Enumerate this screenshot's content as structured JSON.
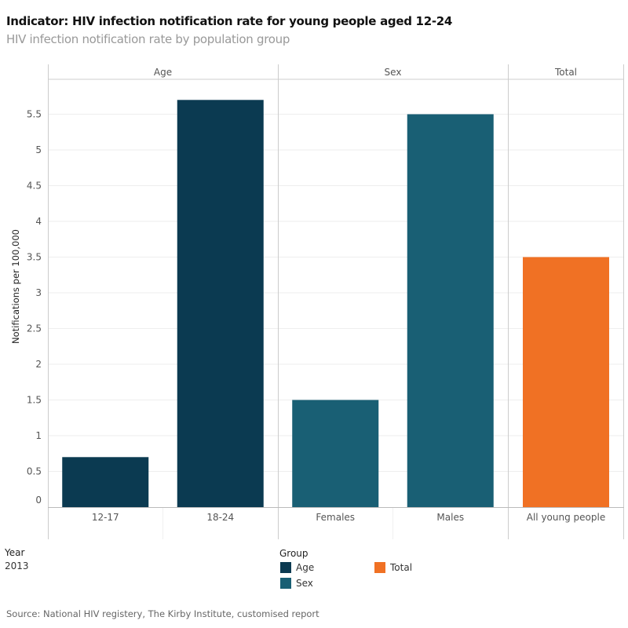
{
  "title": "Indicator: HIV infection notification rate for young people aged 12-24",
  "subtitle": "HIV infection notification rate by population group",
  "chart_data": {
    "type": "bar",
    "ylabel": "Notifications per 100,000",
    "ylim": [
      0,
      5.8
    ],
    "yticks": [
      "0",
      "0.5",
      "1",
      "1.5",
      "2",
      "2.5",
      "3",
      "3.5",
      "4",
      "4.5",
      "5",
      "5.5"
    ],
    "grid": true,
    "panels": [
      {
        "name": "Age",
        "categories": [
          "12-17",
          "18-24"
        ],
        "values": [
          0.7,
          5.7
        ],
        "group": "Age"
      },
      {
        "name": "Sex",
        "categories": [
          "Females",
          "Males"
        ],
        "values": [
          1.5,
          5.5
        ],
        "group": "Sex"
      },
      {
        "name": "Total",
        "categories": [
          "All young people"
        ],
        "values": [
          3.5
        ],
        "group": "Total"
      }
    ],
    "colors": {
      "Age": "#0b3a51",
      "Sex": "#195f74",
      "Total": "#f07124"
    }
  },
  "filter": {
    "label": "Year",
    "value": "2013"
  },
  "legend": {
    "title": "Group",
    "items": [
      "Age",
      "Sex",
      "Total"
    ]
  },
  "source": "Source: National HIV registery, The Kirby Institute, customised report"
}
